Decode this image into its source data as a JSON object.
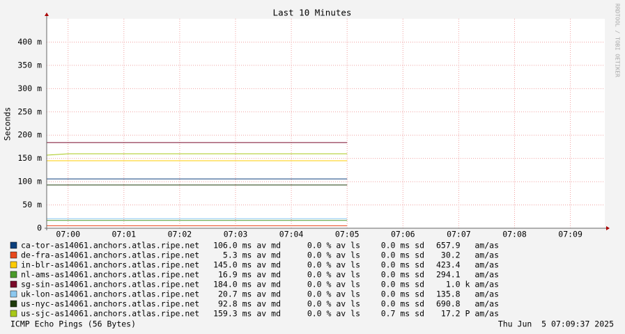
{
  "chart_data": {
    "type": "line",
    "title": "Last 10 Minutes",
    "y_label": "Seconds",
    "side_label": "RRDTOOL / TOBI OETIKER",
    "footer": "ICMP Echo Pings (56 Bytes)",
    "timestamp": "Thu Jun  5 07:09:37 2025",
    "x": [
      "06:59:37",
      "07:00:00",
      "07:05:00"
    ],
    "xlim": [
      "06:59:37",
      "07:09:37"
    ],
    "xticks": [
      "07:00",
      "07:01",
      "07:02",
      "07:03",
      "07:04",
      "07:05",
      "07:06",
      "07:07",
      "07:08",
      "07:09"
    ],
    "ylim": [
      0,
      0.45
    ],
    "yticks": [
      0,
      {
        "value": 0.05,
        "label": "50 m"
      },
      {
        "value": 0.1,
        "label": "100 m"
      },
      {
        "value": 0.15,
        "label": "150 m"
      },
      {
        "value": 0.2,
        "label": "200 m"
      },
      {
        "value": 0.25,
        "label": "250 m"
      },
      {
        "value": 0.3,
        "label": "300 m"
      },
      {
        "value": 0.35,
        "label": "350 m"
      },
      {
        "value": 0.4,
        "label": "400 m"
      }
    ],
    "grid": true,
    "series": [
      {
        "name": "ca-tor-as14061.anchors.atlas.ripe.net",
        "color": "#0c3f7c",
        "values": [
          0.106,
          0.106,
          0.106
        ],
        "stats": [
          "106.0 ms av md",
          "0.0 % av ls",
          "0.0 ms sd",
          "657.9   am/as"
        ]
      },
      {
        "name": "de-fra-as14061.anchors.atlas.ripe.net",
        "color": "#e8481c",
        "values": [
          0.0053,
          0.0053,
          0.0053
        ],
        "stats": [
          "5.3 ms av md",
          "0.0 % av ls",
          "0.0 ms sd",
          "30.2   am/as"
        ]
      },
      {
        "name": "in-blr-as14061.anchors.atlas.ripe.net",
        "color": "#ffcc00",
        "values": [
          0.145,
          0.145,
          0.145
        ],
        "stats": [
          "145.0 ms av md",
          "0.0 % av ls",
          "0.0 ms sd",
          "423.4   am/as"
        ]
      },
      {
        "name": "nl-ams-as14061.anchors.atlas.ripe.net",
        "color": "#4a9a2a",
        "values": [
          0.0169,
          0.0169,
          0.0169
        ],
        "stats": [
          "16.9 ms av md",
          "0.0 % av ls",
          "0.0 ms sd",
          "294.1   am/as"
        ]
      },
      {
        "name": "sg-sin-as14061.anchors.atlas.ripe.net",
        "color": "#7a0a2a",
        "values": [
          0.184,
          0.184,
          0.184
        ],
        "stats": [
          "184.0 ms av md",
          "0.0 % av ls",
          "0.0 ms sd",
          "1.0 k am/as"
        ]
      },
      {
        "name": "uk-lon-as14061.anchors.atlas.ripe.net",
        "color": "#8cc8f0",
        "values": [
          0.0207,
          0.0207,
          0.0207
        ],
        "stats": [
          "20.7 ms av md",
          "0.0 % av ls",
          "0.0 ms sd",
          "135.8   am/as"
        ]
      },
      {
        "name": "us-nyc-as14061.anchors.atlas.ripe.net",
        "color": "#1e3a0a",
        "values": [
          0.0928,
          0.0928,
          0.0928
        ],
        "stats": [
          "92.8 ms av md",
          "0.0 % av ls",
          "0.0 ms sd",
          "690.8   am/as"
        ]
      },
      {
        "name": "us-sjc-as14061.anchors.atlas.ripe.net",
        "color": "#a8c818",
        "values": [
          0.157,
          0.16,
          0.16
        ],
        "stats": [
          "159.3 ms av md",
          "0.0 % av ls",
          "0.7 ms sd",
          "17.2 P am/as"
        ]
      }
    ]
  }
}
